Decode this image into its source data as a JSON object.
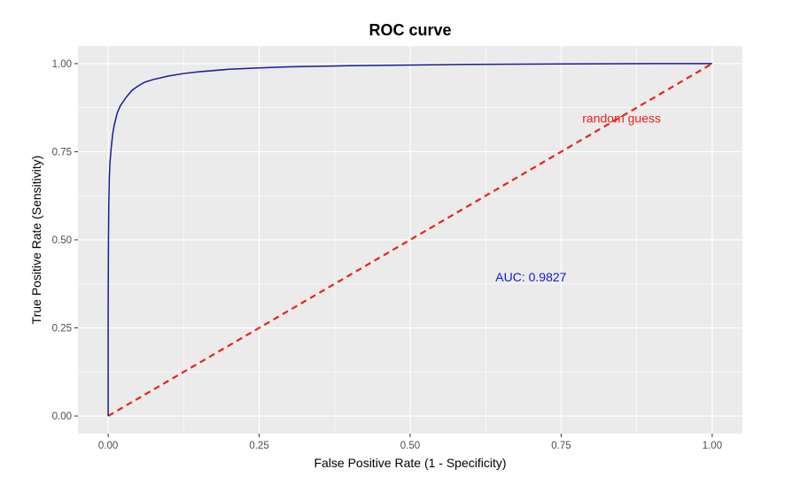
{
  "chart_data": {
    "type": "line",
    "title": "ROC curve",
    "xlabel": "False Positive Rate (1 - Specificity)",
    "ylabel": "True Positive Rate (Sensitivity)",
    "xlim": [
      0,
      1
    ],
    "ylim": [
      0,
      1
    ],
    "x_ticks": [
      "0.00",
      "0.25",
      "0.50",
      "0.75",
      "1.00"
    ],
    "y_ticks": [
      "0.00",
      "0.25",
      "0.50",
      "0.75",
      "1.00"
    ],
    "x_tick_values": [
      0,
      0.25,
      0.5,
      0.75,
      1
    ],
    "y_tick_values": [
      0,
      0.25,
      0.5,
      0.75,
      1
    ],
    "grid": true,
    "background": "#ebebeb",
    "series": [
      {
        "style": "solid",
        "color": "#1a1a99",
        "points": [
          [
            0,
            0
          ],
          [
            0,
            0.3
          ],
          [
            0.0005,
            0.5
          ],
          [
            0.001,
            0.6
          ],
          [
            0.002,
            0.68
          ],
          [
            0.003,
            0.72
          ],
          [
            0.005,
            0.76
          ],
          [
            0.0075,
            0.8
          ],
          [
            0.01,
            0.825
          ],
          [
            0.015,
            0.86
          ],
          [
            0.02,
            0.88
          ],
          [
            0.03,
            0.905
          ],
          [
            0.04,
            0.925
          ],
          [
            0.05,
            0.937
          ],
          [
            0.06,
            0.947
          ],
          [
            0.075,
            0.955
          ],
          [
            0.1,
            0.965
          ],
          [
            0.125,
            0.972
          ],
          [
            0.15,
            0.977
          ],
          [
            0.2,
            0.984
          ],
          [
            0.25,
            0.988
          ],
          [
            0.3,
            0.991
          ],
          [
            0.4,
            0.994
          ],
          [
            0.5,
            0.996
          ],
          [
            0.6,
            0.998
          ],
          [
            0.75,
            0.999
          ],
          [
            0.9,
            1.0
          ],
          [
            1.0,
            1.0
          ]
        ]
      },
      {
        "style": "dashed",
        "color": "#e8231c",
        "points": [
          [
            0,
            0
          ],
          [
            1,
            1
          ]
        ]
      }
    ],
    "annotations": [
      {
        "text": "random guess",
        "x": 0.85,
        "y": 0.845,
        "color": "#e8231c"
      },
      {
        "text": "AUC:  0.9827",
        "x": 0.7,
        "y": 0.395,
        "color": "#1515e0"
      }
    ]
  }
}
